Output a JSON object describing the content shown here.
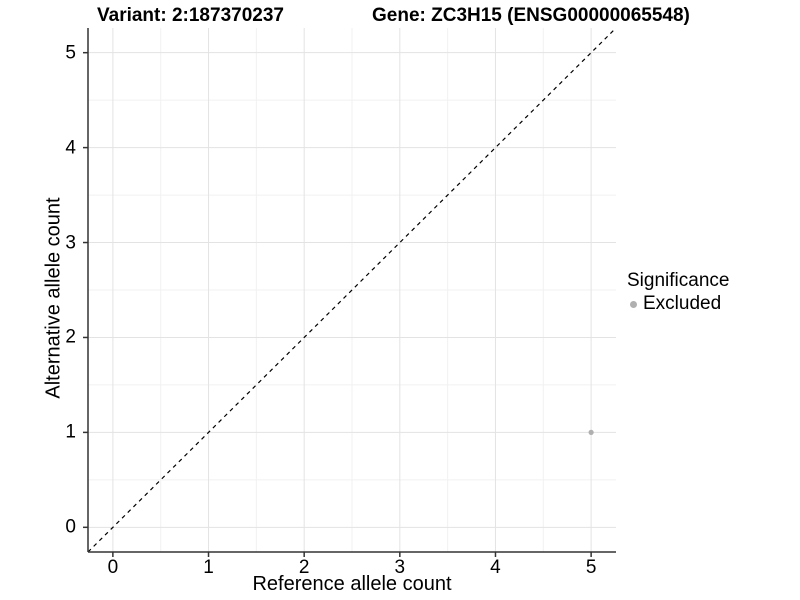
{
  "header": {
    "variant_title": "Variant: 2:187370237",
    "gene_title": "Gene: ZC3H15 (ENSG00000065548)"
  },
  "chart_data": {
    "type": "scatter",
    "xlabel": "Reference allele count",
    "ylabel": "Alternative allele count",
    "xlim": [
      -0.26,
      5.26
    ],
    "ylim": [
      -0.26,
      5.26
    ],
    "x_ticks": [
      0,
      1,
      2,
      3,
      4,
      5
    ],
    "y_ticks": [
      0,
      1,
      2,
      3,
      4,
      5
    ],
    "x_minor_ticks": [
      0.5,
      1.5,
      2.5,
      3.5,
      4.5
    ],
    "y_minor_ticks": [
      0.5,
      1.5,
      2.5,
      3.5,
      4.5
    ],
    "grid": "on",
    "legend_position": "right",
    "series": [
      {
        "name": "Excluded",
        "color": "#b0b0b0",
        "points": [
          {
            "x": 5,
            "y": 1
          }
        ]
      }
    ],
    "reference_line": {
      "kind": "identity",
      "slope": 1,
      "intercept": 0,
      "linestyle": "dashed",
      "color": "#000000"
    }
  },
  "legend": {
    "title": "Significance",
    "items": [
      {
        "label": "Excluded",
        "color": "#b0b0b0"
      }
    ]
  },
  "colors": {
    "background": "#ffffff",
    "grid_major": "#e3e3e3",
    "grid_minor": "#f1f1f1",
    "axis": "#333333",
    "text": "#000000"
  }
}
